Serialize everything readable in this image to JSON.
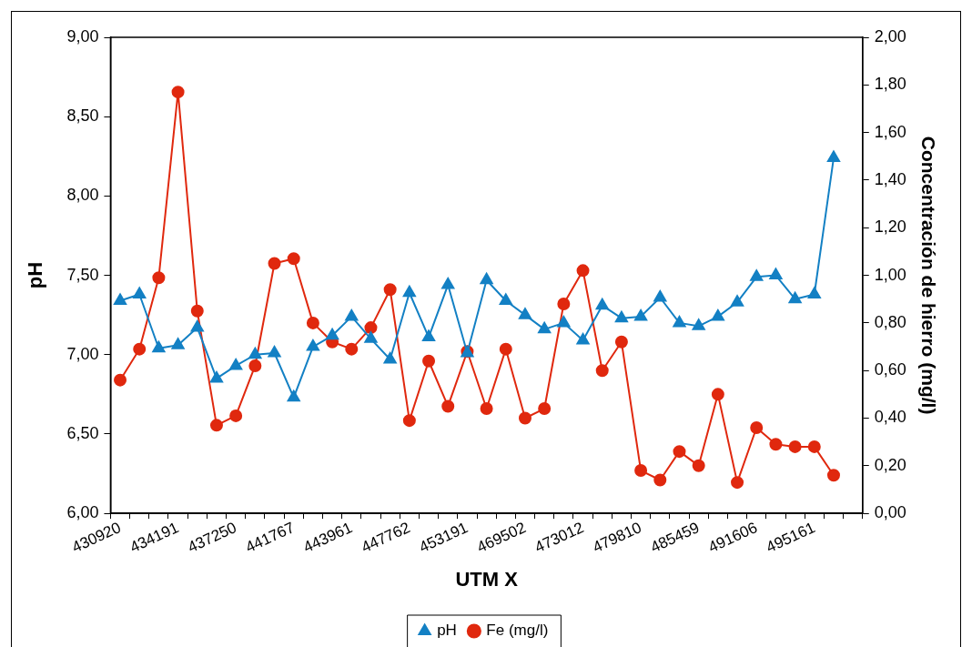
{
  "chart_data": {
    "type": "line",
    "xlabel": "UTM X",
    "ylabel": "pH",
    "y2label": "Concentración de hierro (mg/l)",
    "categories": [
      "430920",
      null,
      null,
      "434191",
      null,
      null,
      "437250",
      null,
      null,
      "441767",
      null,
      null,
      "443961",
      null,
      null,
      "447762",
      null,
      null,
      "453191",
      null,
      null,
      "469502",
      null,
      null,
      "473012",
      null,
      null,
      "479810",
      null,
      null,
      "485459",
      null,
      null,
      "491606",
      null,
      null,
      "495161",
      null,
      null
    ],
    "series": [
      {
        "name": "pH",
        "color": "#1380c4",
        "marker": "triangle",
        "values": [
          7.34,
          7.38,
          7.04,
          7.06,
          7.17,
          6.85,
          6.93,
          7.0,
          7.01,
          6.73,
          7.05,
          7.12,
          7.24,
          7.1,
          6.97,
          7.39,
          7.11,
          7.44,
          7.01,
          7.47,
          7.34,
          7.25,
          7.16,
          7.2,
          7.09,
          7.31,
          7.23,
          7.24,
          7.36,
          7.2,
          7.18,
          7.24,
          7.33,
          7.49,
          7.5,
          7.35,
          7.38,
          8.24,
          null
        ]
      },
      {
        "name": "Fe (mg/l)",
        "color": "#e0280e",
        "marker": "circle",
        "axis": "y2",
        "values": [
          0.56,
          0.69,
          0.99,
          1.77,
          0.85,
          0.37,
          0.41,
          0.62,
          1.05,
          1.07,
          0.8,
          0.72,
          0.69,
          0.78,
          0.94,
          0.39,
          0.64,
          0.45,
          0.68,
          0.44,
          0.69,
          0.4,
          0.44,
          0.88,
          1.02,
          0.6,
          0.72,
          0.18,
          0.14,
          0.26,
          0.2,
          0.5,
          0.13,
          0.36,
          0.29,
          0.28,
          0.28,
          0.16,
          null
        ]
      }
    ],
    "ylim": [
      6,
      9
    ],
    "yticks": [
      {
        "value": 6,
        "label": "6,00"
      },
      {
        "value": 6.5,
        "label": "6,50"
      },
      {
        "value": 7,
        "label": "7,00"
      },
      {
        "value": 7.5,
        "label": "7,50"
      },
      {
        "value": 8,
        "label": "8,00"
      },
      {
        "value": 8.5,
        "label": "8,50"
      },
      {
        "value": 9,
        "label": "9,00"
      }
    ],
    "y2lim": [
      0,
      2
    ],
    "y2ticks": [
      {
        "value": 0,
        "label": "0,00"
      },
      {
        "value": 0.2,
        "label": "0,20"
      },
      {
        "value": 0.4,
        "label": "0,40"
      },
      {
        "value": 0.6,
        "label": "0,60"
      },
      {
        "value": 0.8,
        "label": "0,80"
      },
      {
        "value": 1,
        "label": "1,00"
      },
      {
        "value": 1.2,
        "label": "1,20"
      },
      {
        "value": 1.4,
        "label": "1,40"
      },
      {
        "value": 1.6,
        "label": "1,60"
      },
      {
        "value": 1.8,
        "label": "1,80"
      },
      {
        "value": 2,
        "label": "2,00"
      }
    ],
    "legend": "bottom",
    "line_style": "solid"
  }
}
